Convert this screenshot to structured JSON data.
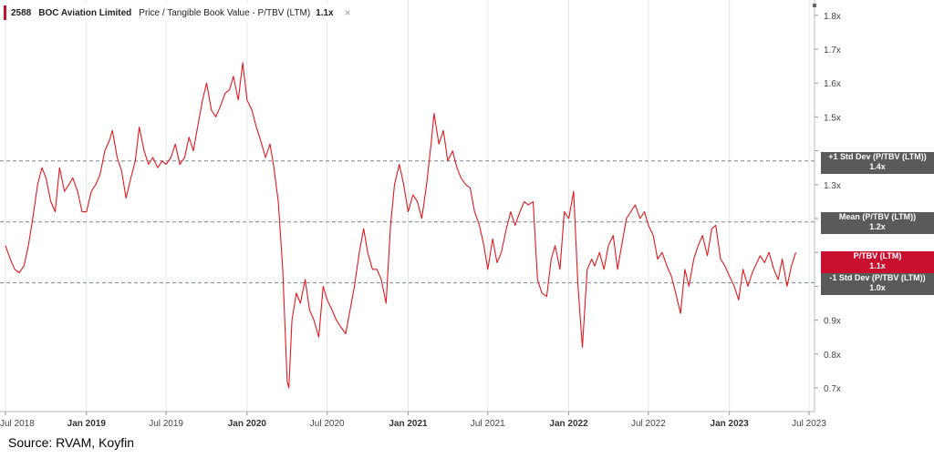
{
  "header": {
    "ticker": "2588",
    "company": "BOC Aviation Limited",
    "metric": "Price / Tangible Book Value - P/TBV (LTM)",
    "value": "1.1x",
    "close_glyph": "×"
  },
  "source": "Source: RVAM, Koyfin",
  "colors": {
    "line": "#e0191e",
    "tag_gray": "#5a5a5a",
    "tag_red": "#c8102e",
    "ref_line": "#7a8595",
    "grid": "#e6e6e6"
  },
  "tags": {
    "plus1": {
      "label": "+1 Std Dev (P/TBV (LTM))",
      "value": "1.4x"
    },
    "mean": {
      "label": "Mean (P/TBV (LTM))",
      "value": "1.2x"
    },
    "current": {
      "label": "P/TBV (LTM)",
      "value": "1.1x"
    },
    "minus1": {
      "label": "-1 Std Dev (P/TBV (LTM))",
      "value": "1.0x"
    }
  },
  "chart_data": {
    "type": "line",
    "ylim": [
      0.65,
      1.85
    ],
    "y_ticks": [
      0.7,
      0.8,
      0.9,
      1.0,
      1.1,
      1.2,
      1.3,
      1.4,
      1.5,
      1.6,
      1.7,
      1.8
    ],
    "y_tick_labels": [
      "0.7x",
      "0.8x",
      "0.9x",
      "",
      "",
      "",
      "1.3x",
      "",
      "1.5x",
      "1.6x",
      "1.7x",
      "1.8x"
    ],
    "x_range": [
      "2018-07-01",
      "2023-07-01"
    ],
    "x_ticks": [
      {
        "label": "Jul 2018",
        "date": "2018-07-01",
        "bold": false
      },
      {
        "label": "Jan 2019",
        "date": "2019-01-01",
        "bold": true
      },
      {
        "label": "Jul 2019",
        "date": "2019-07-01",
        "bold": false
      },
      {
        "label": "Jan 2020",
        "date": "2020-01-01",
        "bold": true
      },
      {
        "label": "Jul 2020",
        "date": "2020-07-01",
        "bold": false
      },
      {
        "label": "Jan 2021",
        "date": "2021-01-01",
        "bold": true
      },
      {
        "label": "Jul 2021",
        "date": "2021-07-01",
        "bold": false
      },
      {
        "label": "Jan 2022",
        "date": "2022-01-01",
        "bold": true
      },
      {
        "label": "Jul 2022",
        "date": "2022-07-01",
        "bold": false
      },
      {
        "label": "Jan 2023",
        "date": "2023-01-01",
        "bold": true
      },
      {
        "label": "Jul 2023",
        "date": "2023-07-01",
        "bold": false
      }
    ],
    "reference_lines": [
      {
        "name": "+1 Std Dev (P/TBV (LTM))",
        "value": 1.37
      },
      {
        "name": "Mean (P/TBV (LTM))",
        "value": 1.19
      },
      {
        "name": "-1 Std Dev (P/TBV (LTM))",
        "value": 1.01
      }
    ],
    "series": [
      {
        "name": "P/TBV (LTM)",
        "points": [
          [
            "2018-07-01",
            1.12
          ],
          [
            "2018-07-12",
            1.08
          ],
          [
            "2018-07-22",
            1.05
          ],
          [
            "2018-08-01",
            1.04
          ],
          [
            "2018-08-12",
            1.06
          ],
          [
            "2018-08-22",
            1.12
          ],
          [
            "2018-09-01",
            1.2
          ],
          [
            "2018-09-12",
            1.3
          ],
          [
            "2018-09-22",
            1.35
          ],
          [
            "2018-10-01",
            1.32
          ],
          [
            "2018-10-12",
            1.25
          ],
          [
            "2018-10-22",
            1.22
          ],
          [
            "2018-11-01",
            1.35
          ],
          [
            "2018-11-12",
            1.28
          ],
          [
            "2018-11-22",
            1.3
          ],
          [
            "2018-12-01",
            1.32
          ],
          [
            "2018-12-12",
            1.28
          ],
          [
            "2018-12-22",
            1.22
          ],
          [
            "2019-01-01",
            1.22
          ],
          [
            "2019-01-12",
            1.28
          ],
          [
            "2019-01-22",
            1.3
          ],
          [
            "2019-02-01",
            1.33
          ],
          [
            "2019-02-12",
            1.4
          ],
          [
            "2019-02-22",
            1.43
          ],
          [
            "2019-03-01",
            1.46
          ],
          [
            "2019-03-12",
            1.38
          ],
          [
            "2019-03-22",
            1.34
          ],
          [
            "2019-04-01",
            1.26
          ],
          [
            "2019-04-12",
            1.32
          ],
          [
            "2019-04-22",
            1.37
          ],
          [
            "2019-05-01",
            1.47
          ],
          [
            "2019-05-12",
            1.4
          ],
          [
            "2019-05-22",
            1.36
          ],
          [
            "2019-06-01",
            1.38
          ],
          [
            "2019-06-12",
            1.35
          ],
          [
            "2019-06-22",
            1.37
          ],
          [
            "2019-07-01",
            1.36
          ],
          [
            "2019-07-12",
            1.38
          ],
          [
            "2019-07-22",
            1.42
          ],
          [
            "2019-08-01",
            1.36
          ],
          [
            "2019-08-12",
            1.38
          ],
          [
            "2019-08-22",
            1.44
          ],
          [
            "2019-09-01",
            1.4
          ],
          [
            "2019-09-12",
            1.48
          ],
          [
            "2019-09-22",
            1.55
          ],
          [
            "2019-10-01",
            1.6
          ],
          [
            "2019-10-12",
            1.52
          ],
          [
            "2019-10-22",
            1.5
          ],
          [
            "2019-11-01",
            1.53
          ],
          [
            "2019-11-12",
            1.57
          ],
          [
            "2019-11-22",
            1.58
          ],
          [
            "2019-12-01",
            1.62
          ],
          [
            "2019-12-12",
            1.55
          ],
          [
            "2019-12-22",
            1.66
          ],
          [
            "2020-01-01",
            1.55
          ],
          [
            "2020-01-12",
            1.52
          ],
          [
            "2020-01-22",
            1.47
          ],
          [
            "2020-02-01",
            1.43
          ],
          [
            "2020-02-12",
            1.38
          ],
          [
            "2020-02-22",
            1.42
          ],
          [
            "2020-03-01",
            1.36
          ],
          [
            "2020-03-12",
            1.25
          ],
          [
            "2020-03-22",
            1.05
          ],
          [
            "2020-04-01",
            0.72
          ],
          [
            "2020-04-05",
            0.7
          ],
          [
            "2020-04-12",
            0.9
          ],
          [
            "2020-04-22",
            0.98
          ],
          [
            "2020-05-01",
            0.95
          ],
          [
            "2020-05-12",
            1.02
          ],
          [
            "2020-05-22",
            0.93
          ],
          [
            "2020-06-01",
            0.9
          ],
          [
            "2020-06-12",
            0.85
          ],
          [
            "2020-06-22",
            1.0
          ],
          [
            "2020-07-01",
            0.96
          ],
          [
            "2020-07-12",
            0.93
          ],
          [
            "2020-07-22",
            0.9
          ],
          [
            "2020-08-01",
            0.88
          ],
          [
            "2020-08-12",
            0.86
          ],
          [
            "2020-08-22",
            0.93
          ],
          [
            "2020-09-01",
            1.0
          ],
          [
            "2020-09-12",
            1.1
          ],
          [
            "2020-09-22",
            1.17
          ],
          [
            "2020-10-01",
            1.1
          ],
          [
            "2020-10-12",
            1.05
          ],
          [
            "2020-10-22",
            1.05
          ],
          [
            "2020-11-01",
            1.02
          ],
          [
            "2020-11-12",
            0.95
          ],
          [
            "2020-11-22",
            1.18
          ],
          [
            "2020-12-01",
            1.3
          ],
          [
            "2020-12-12",
            1.36
          ],
          [
            "2020-12-22",
            1.3
          ],
          [
            "2021-01-01",
            1.22
          ],
          [
            "2021-01-12",
            1.27
          ],
          [
            "2021-01-22",
            1.25
          ],
          [
            "2021-02-01",
            1.2
          ],
          [
            "2021-02-12",
            1.3
          ],
          [
            "2021-02-22",
            1.42
          ],
          [
            "2021-03-01",
            1.51
          ],
          [
            "2021-03-12",
            1.42
          ],
          [
            "2021-03-22",
            1.46
          ],
          [
            "2021-04-01",
            1.37
          ],
          [
            "2021-04-12",
            1.4
          ],
          [
            "2021-04-22",
            1.35
          ],
          [
            "2021-05-01",
            1.32
          ],
          [
            "2021-05-12",
            1.3
          ],
          [
            "2021-05-22",
            1.29
          ],
          [
            "2021-06-01",
            1.22
          ],
          [
            "2021-06-12",
            1.18
          ],
          [
            "2021-06-22",
            1.12
          ],
          [
            "2021-07-01",
            1.05
          ],
          [
            "2021-07-12",
            1.14
          ],
          [
            "2021-07-22",
            1.07
          ],
          [
            "2021-08-01",
            1.1
          ],
          [
            "2021-08-12",
            1.17
          ],
          [
            "2021-08-22",
            1.22
          ],
          [
            "2021-09-01",
            1.18
          ],
          [
            "2021-09-12",
            1.22
          ],
          [
            "2021-09-22",
            1.25
          ],
          [
            "2021-10-01",
            1.24
          ],
          [
            "2021-10-12",
            1.25
          ],
          [
            "2021-10-22",
            1.02
          ],
          [
            "2021-11-01",
            0.98
          ],
          [
            "2021-11-12",
            0.97
          ],
          [
            "2021-11-22",
            1.08
          ],
          [
            "2021-12-01",
            1.12
          ],
          [
            "2021-12-12",
            1.05
          ],
          [
            "2021-12-22",
            1.22
          ],
          [
            "2022-01-01",
            1.2
          ],
          [
            "2022-01-12",
            1.28
          ],
          [
            "2022-01-22",
            1.0
          ],
          [
            "2022-02-01",
            0.82
          ],
          [
            "2022-02-12",
            1.05
          ],
          [
            "2022-02-22",
            1.08
          ],
          [
            "2022-03-01",
            1.06
          ],
          [
            "2022-03-12",
            1.1
          ],
          [
            "2022-03-22",
            1.05
          ],
          [
            "2022-04-01",
            1.12
          ],
          [
            "2022-04-12",
            1.15
          ],
          [
            "2022-04-22",
            1.05
          ],
          [
            "2022-05-01",
            1.12
          ],
          [
            "2022-05-12",
            1.2
          ],
          [
            "2022-05-22",
            1.22
          ],
          [
            "2022-06-01",
            1.24
          ],
          [
            "2022-06-12",
            1.2
          ],
          [
            "2022-06-22",
            1.22
          ],
          [
            "2022-07-01",
            1.18
          ],
          [
            "2022-07-12",
            1.15
          ],
          [
            "2022-07-22",
            1.08
          ],
          [
            "2022-08-01",
            1.1
          ],
          [
            "2022-08-12",
            1.06
          ],
          [
            "2022-08-22",
            1.03
          ],
          [
            "2022-09-01",
            0.98
          ],
          [
            "2022-09-12",
            0.92
          ],
          [
            "2022-09-22",
            1.05
          ],
          [
            "2022-10-01",
            1.0
          ],
          [
            "2022-10-12",
            1.08
          ],
          [
            "2022-10-22",
            1.12
          ],
          [
            "2022-11-01",
            1.15
          ],
          [
            "2022-11-12",
            1.09
          ],
          [
            "2022-11-22",
            1.17
          ],
          [
            "2022-12-01",
            1.18
          ],
          [
            "2022-12-12",
            1.08
          ],
          [
            "2022-12-22",
            1.06
          ],
          [
            "2023-01-01",
            1.03
          ],
          [
            "2023-01-12",
            1.0
          ],
          [
            "2023-01-22",
            0.96
          ],
          [
            "2023-02-01",
            1.05
          ],
          [
            "2023-02-12",
            1.0
          ],
          [
            "2023-02-22",
            1.04
          ],
          [
            "2023-03-01",
            1.06
          ],
          [
            "2023-03-12",
            1.09
          ],
          [
            "2023-03-22",
            1.07
          ],
          [
            "2023-04-01",
            1.1
          ],
          [
            "2023-04-12",
            1.05
          ],
          [
            "2023-04-22",
            1.02
          ],
          [
            "2023-05-01",
            1.08
          ],
          [
            "2023-05-12",
            1.0
          ],
          [
            "2023-05-22",
            1.06
          ],
          [
            "2023-06-01",
            1.1
          ]
        ]
      }
    ]
  }
}
